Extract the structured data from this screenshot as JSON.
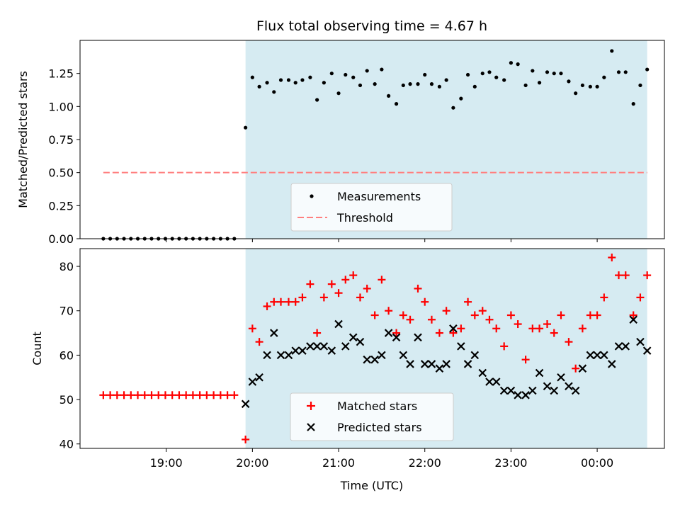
{
  "figure_title": "Flux total observing time = 4.67 h",
  "x_axis": {
    "label": "Time (UTC)",
    "range_hours": [
      18.0,
      24.78
    ],
    "ticks": [
      {
        "value": 19,
        "label": "19:00"
      },
      {
        "value": 20,
        "label": "20:00"
      },
      {
        "value": 21,
        "label": "21:00"
      },
      {
        "value": 22,
        "label": "22:00"
      },
      {
        "value": 23,
        "label": "23:00"
      },
      {
        "value": 24,
        "label": "00:00"
      }
    ]
  },
  "shaded_region": {
    "start_hours": 19.92,
    "end_hours": 24.58,
    "color": "#add8e6"
  },
  "colors": {
    "measurements": "#000000",
    "threshold": "#ff7f7f",
    "matched": "#ff0000",
    "predicted": "#000000"
  },
  "chart_data": [
    {
      "type": "scatter",
      "name": "ratio-panel",
      "ylabel": "Matched/Predicted stars",
      "ylim": [
        0,
        1.5
      ],
      "yticks": [
        {
          "value": 0,
          "label": "0.00"
        },
        {
          "value": 0.25,
          "label": "0.25"
        },
        {
          "value": 0.5,
          "label": "0.50"
        },
        {
          "value": 0.75,
          "label": "0.75"
        },
        {
          "value": 1.0,
          "label": "1.00"
        },
        {
          "value": 1.25,
          "label": "1.25"
        }
      ],
      "legend": {
        "placement": "lower-center",
        "entries": [
          "Measurements",
          "Threshold"
        ]
      },
      "threshold": {
        "name": "Threshold",
        "value": 0.5,
        "x_start": 18.27,
        "x_end": 24.58
      },
      "series": [
        {
          "name": "Measurements",
          "marker": "dot",
          "points": [
            [
              18.27,
              0
            ],
            [
              18.35,
              0
            ],
            [
              18.43,
              0
            ],
            [
              18.51,
              0
            ],
            [
              18.59,
              0
            ],
            [
              18.67,
              0
            ],
            [
              18.75,
              0
            ],
            [
              18.83,
              0
            ],
            [
              18.91,
              0
            ],
            [
              18.99,
              0
            ],
            [
              19.07,
              0
            ],
            [
              19.15,
              0
            ],
            [
              19.23,
              0
            ],
            [
              19.31,
              0
            ],
            [
              19.39,
              0
            ],
            [
              19.47,
              0
            ],
            [
              19.55,
              0
            ],
            [
              19.63,
              0
            ],
            [
              19.71,
              0
            ],
            [
              19.79,
              0
            ],
            [
              19.92,
              0.84
            ],
            [
              20.0,
              1.22
            ],
            [
              20.08,
              1.15
            ],
            [
              20.17,
              1.18
            ],
            [
              20.25,
              1.11
            ],
            [
              20.33,
              1.2
            ],
            [
              20.42,
              1.2
            ],
            [
              20.5,
              1.18
            ],
            [
              20.58,
              1.2
            ],
            [
              20.67,
              1.22
            ],
            [
              20.75,
              1.05
            ],
            [
              20.83,
              1.18
            ],
            [
              20.92,
              1.25
            ],
            [
              21.0,
              1.1
            ],
            [
              21.08,
              1.24
            ],
            [
              21.17,
              1.22
            ],
            [
              21.25,
              1.16
            ],
            [
              21.33,
              1.27
            ],
            [
              21.42,
              1.17
            ],
            [
              21.5,
              1.28
            ],
            [
              21.58,
              1.08
            ],
            [
              21.67,
              1.02
            ],
            [
              21.75,
              1.16
            ],
            [
              21.83,
              1.17
            ],
            [
              21.92,
              1.17
            ],
            [
              22.0,
              1.24
            ],
            [
              22.08,
              1.17
            ],
            [
              22.17,
              1.15
            ],
            [
              22.25,
              1.2
            ],
            [
              22.33,
              0.99
            ],
            [
              22.42,
              1.06
            ],
            [
              22.5,
              1.24
            ],
            [
              22.58,
              1.15
            ],
            [
              22.67,
              1.25
            ],
            [
              22.75,
              1.26
            ],
            [
              22.83,
              1.22
            ],
            [
              22.92,
              1.2
            ],
            [
              23.0,
              1.33
            ],
            [
              23.08,
              1.32
            ],
            [
              23.17,
              1.16
            ],
            [
              23.25,
              1.27
            ],
            [
              23.33,
              1.18
            ],
            [
              23.42,
              1.26
            ],
            [
              23.5,
              1.25
            ],
            [
              23.58,
              1.25
            ],
            [
              23.67,
              1.19
            ],
            [
              23.75,
              1.1
            ],
            [
              23.83,
              1.16
            ],
            [
              23.92,
              1.15
            ],
            [
              24.0,
              1.15
            ],
            [
              24.08,
              1.22
            ],
            [
              24.17,
              1.42
            ],
            [
              24.25,
              1.26
            ],
            [
              24.33,
              1.26
            ],
            [
              24.42,
              1.02
            ],
            [
              24.5,
              1.16
            ],
            [
              24.58,
              1.28
            ]
          ]
        }
      ]
    },
    {
      "type": "scatter",
      "name": "count-panel",
      "xlabel": "Time (UTC)",
      "ylabel": "Count",
      "ylim": [
        39,
        84
      ],
      "yticks": [
        {
          "value": 40,
          "label": "40"
        },
        {
          "value": 50,
          "label": "50"
        },
        {
          "value": 60,
          "label": "60"
        },
        {
          "value": 70,
          "label": "70"
        },
        {
          "value": 80,
          "label": "80"
        }
      ],
      "legend": {
        "placement": "lower-center",
        "entries": [
          "Matched stars",
          "Predicted stars"
        ]
      },
      "series": [
        {
          "name": "Matched stars",
          "marker": "plus",
          "points": [
            [
              18.27,
              51
            ],
            [
              18.35,
              51
            ],
            [
              18.43,
              51
            ],
            [
              18.51,
              51
            ],
            [
              18.59,
              51
            ],
            [
              18.67,
              51
            ],
            [
              18.75,
              51
            ],
            [
              18.83,
              51
            ],
            [
              18.91,
              51
            ],
            [
              18.99,
              51
            ],
            [
              19.07,
              51
            ],
            [
              19.15,
              51
            ],
            [
              19.23,
              51
            ],
            [
              19.31,
              51
            ],
            [
              19.39,
              51
            ],
            [
              19.47,
              51
            ],
            [
              19.55,
              51
            ],
            [
              19.63,
              51
            ],
            [
              19.71,
              51
            ],
            [
              19.79,
              51
            ],
            [
              19.92,
              41
            ],
            [
              20.0,
              66
            ],
            [
              20.08,
              63
            ],
            [
              20.17,
              71
            ],
            [
              20.25,
              72
            ],
            [
              20.33,
              72
            ],
            [
              20.42,
              72
            ],
            [
              20.5,
              72
            ],
            [
              20.58,
              73
            ],
            [
              20.67,
              76
            ],
            [
              20.75,
              65
            ],
            [
              20.83,
              73
            ],
            [
              20.92,
              76
            ],
            [
              21.0,
              74
            ],
            [
              21.08,
              77
            ],
            [
              21.17,
              78
            ],
            [
              21.25,
              73
            ],
            [
              21.33,
              75
            ],
            [
              21.42,
              69
            ],
            [
              21.5,
              77
            ],
            [
              21.58,
              70
            ],
            [
              21.67,
              65
            ],
            [
              21.75,
              69
            ],
            [
              21.83,
              68
            ],
            [
              21.92,
              75
            ],
            [
              22.0,
              72
            ],
            [
              22.08,
              68
            ],
            [
              22.17,
              65
            ],
            [
              22.25,
              70
            ],
            [
              22.33,
              65
            ],
            [
              22.42,
              66
            ],
            [
              22.5,
              72
            ],
            [
              22.58,
              69
            ],
            [
              22.67,
              70
            ],
            [
              22.75,
              68
            ],
            [
              22.83,
              66
            ],
            [
              22.92,
              62
            ],
            [
              23.0,
              69
            ],
            [
              23.08,
              67
            ],
            [
              23.17,
              59
            ],
            [
              23.25,
              66
            ],
            [
              23.33,
              66
            ],
            [
              23.42,
              67
            ],
            [
              23.5,
              65
            ],
            [
              23.58,
              69
            ],
            [
              23.67,
              63
            ],
            [
              23.75,
              57
            ],
            [
              23.83,
              66
            ],
            [
              23.92,
              69
            ],
            [
              24.0,
              69
            ],
            [
              24.08,
              73
            ],
            [
              24.17,
              82
            ],
            [
              24.25,
              78
            ],
            [
              24.33,
              78
            ],
            [
              24.42,
              69
            ],
            [
              24.5,
              73
            ],
            [
              24.58,
              78
            ]
          ]
        },
        {
          "name": "Predicted stars",
          "marker": "x",
          "points": [
            [
              19.92,
              49
            ],
            [
              20.0,
              54
            ],
            [
              20.08,
              55
            ],
            [
              20.17,
              60
            ],
            [
              20.25,
              65
            ],
            [
              20.33,
              60
            ],
            [
              20.42,
              60
            ],
            [
              20.5,
              61
            ],
            [
              20.58,
              61
            ],
            [
              20.67,
              62
            ],
            [
              20.75,
              62
            ],
            [
              20.83,
              62
            ],
            [
              20.92,
              61
            ],
            [
              21.0,
              67
            ],
            [
              21.08,
              62
            ],
            [
              21.17,
              64
            ],
            [
              21.25,
              63
            ],
            [
              21.33,
              59
            ],
            [
              21.42,
              59
            ],
            [
              21.5,
              60
            ],
            [
              21.58,
              65
            ],
            [
              21.67,
              64
            ],
            [
              21.75,
              60
            ],
            [
              21.83,
              58
            ],
            [
              21.92,
              64
            ],
            [
              22.0,
              58
            ],
            [
              22.08,
              58
            ],
            [
              22.17,
              57
            ],
            [
              22.25,
              58
            ],
            [
              22.33,
              66
            ],
            [
              22.42,
              62
            ],
            [
              22.5,
              58
            ],
            [
              22.58,
              60
            ],
            [
              22.67,
              56
            ],
            [
              22.75,
              54
            ],
            [
              22.83,
              54
            ],
            [
              22.92,
              52
            ],
            [
              23.0,
              52
            ],
            [
              23.08,
              51
            ],
            [
              23.17,
              51
            ],
            [
              23.25,
              52
            ],
            [
              23.33,
              56
            ],
            [
              23.42,
              53
            ],
            [
              23.5,
              52
            ],
            [
              23.58,
              55
            ],
            [
              23.67,
              53
            ],
            [
              23.75,
              52
            ],
            [
              23.83,
              57
            ],
            [
              23.92,
              60
            ],
            [
              24.0,
              60
            ],
            [
              24.08,
              60
            ],
            [
              24.17,
              58
            ],
            [
              24.25,
              62
            ],
            [
              24.33,
              62
            ],
            [
              24.42,
              68
            ],
            [
              24.5,
              63
            ],
            [
              24.58,
              61
            ]
          ]
        }
      ]
    }
  ]
}
